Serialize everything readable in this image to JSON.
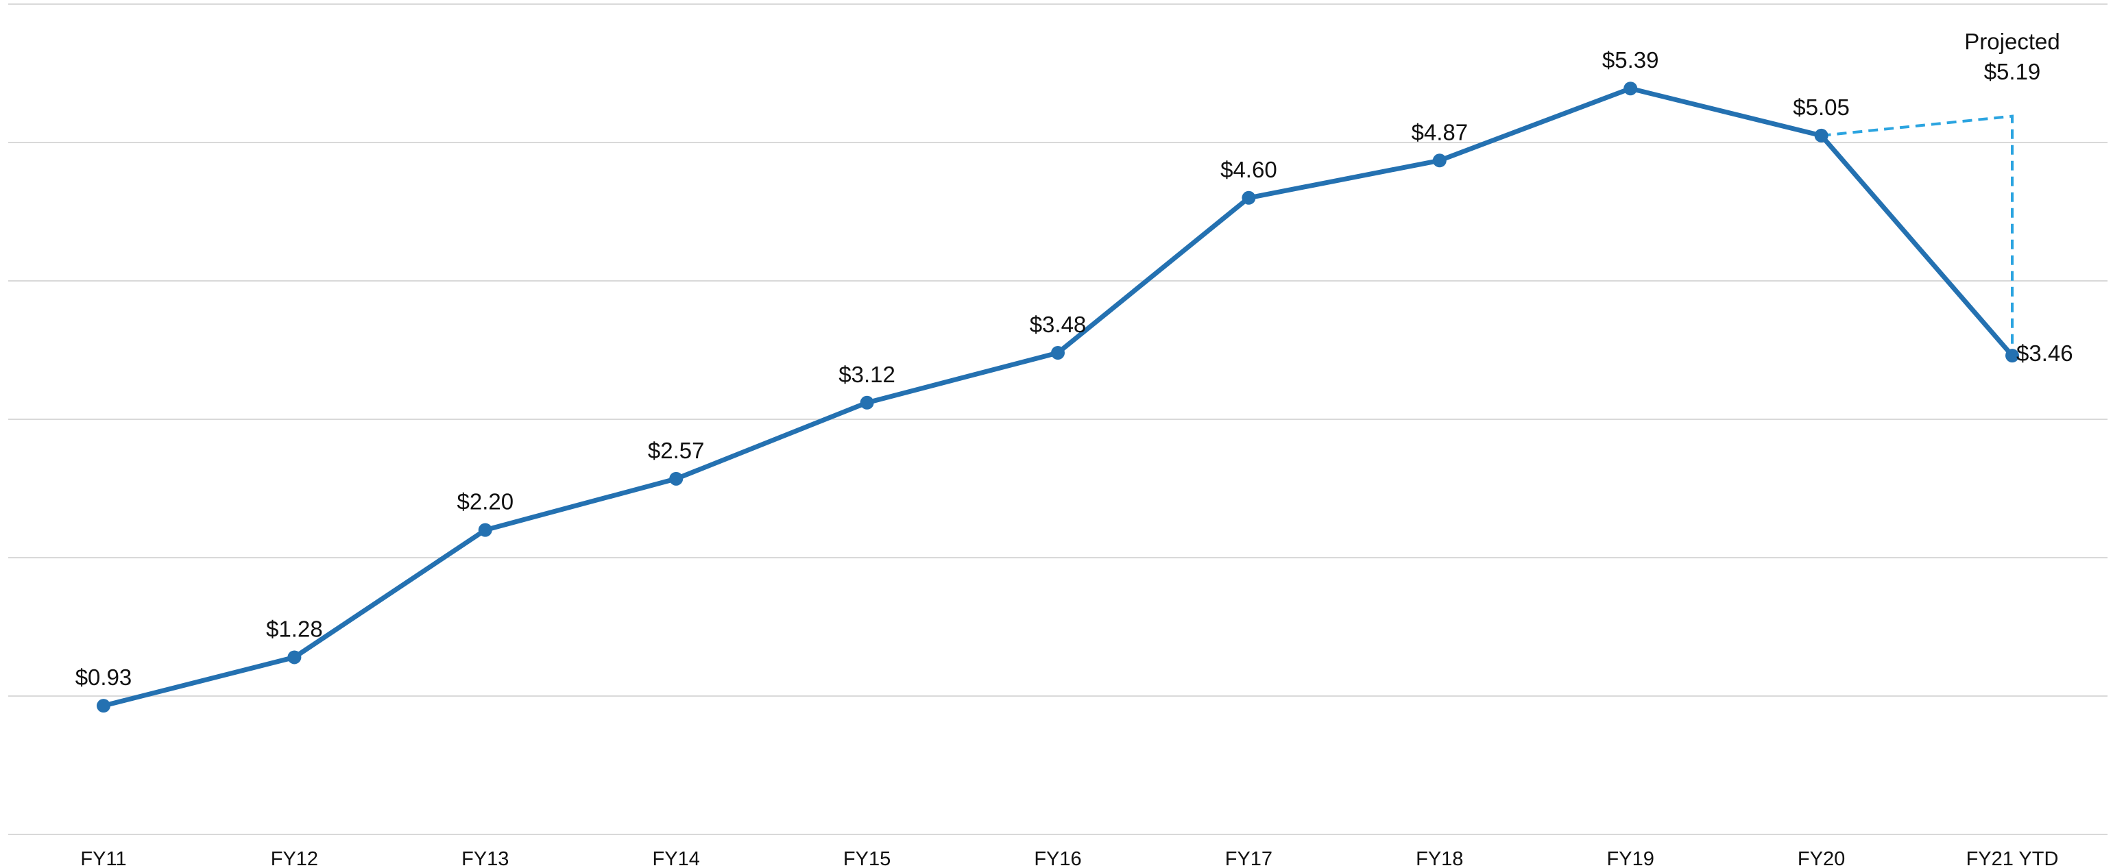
{
  "chart_data": {
    "type": "line",
    "categories": [
      "FY11",
      "FY12",
      "FY13",
      "FY14",
      "FY15",
      "FY16",
      "FY17",
      "FY18",
      "FY19",
      "FY20",
      "FY21 YTD"
    ],
    "series": [
      {
        "values": [
          0.93,
          1.28,
          2.2,
          2.57,
          3.12,
          3.48,
          4.6,
          4.87,
          5.39,
          5.05,
          3.46
        ],
        "labels": [
          "$0.93",
          "$1.28",
          "$2.20",
          "$2.57",
          "$3.12",
          "$3.48",
          "$4.60",
          "$4.87",
          "$5.39",
          "$5.05",
          "$3.46"
        ],
        "color": "#2471b1"
      }
    ],
    "projection": {
      "from_category": "FY20",
      "to_category": "FY21 YTD",
      "value": 5.19,
      "label_line1": "Projected",
      "label_line2": "$5.19",
      "color": "#2ba4e0",
      "style": "dashed"
    },
    "ylim": [
      0,
      6
    ],
    "grid": true,
    "title": "",
    "xlabel": "",
    "ylabel": ""
  }
}
